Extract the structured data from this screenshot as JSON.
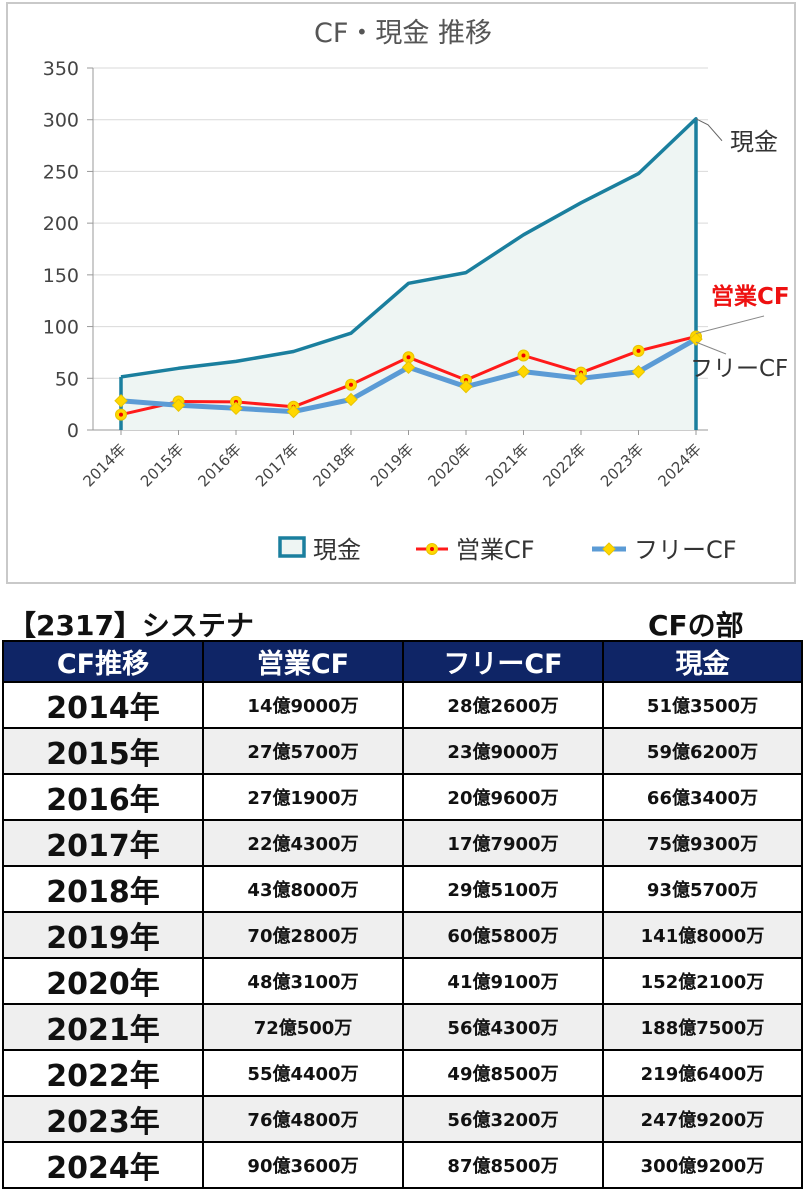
{
  "chart_data": {
    "type": "line",
    "title": "CF・現金 推移",
    "categories": [
      "2014年",
      "2015年",
      "2016年",
      "2017年",
      "2018年",
      "2019年",
      "2020年",
      "2021年",
      "2022年",
      "2023年",
      "2024年"
    ],
    "ylim": [
      0,
      350
    ],
    "yticks": [
      0,
      50,
      100,
      150,
      200,
      250,
      300,
      350
    ],
    "grid": true,
    "legend": "bottom",
    "series": [
      {
        "name": "現金",
        "style": "area",
        "color": "#1a7f9e",
        "fill": "#eef5f3",
        "values": [
          51.35,
          59.62,
          66.34,
          75.93,
          93.57,
          141.8,
          152.21,
          188.75,
          219.64,
          247.92,
          300.92
        ],
        "end_label": "現金",
        "end_label_color": "#333333"
      },
      {
        "name": "営業CF",
        "style": "line-marker",
        "color": "#ff1a1a",
        "marker": "#ffd700",
        "values": [
          14.9,
          27.57,
          27.19,
          22.43,
          43.8,
          70.28,
          48.31,
          72.05,
          55.44,
          76.48,
          90.36
        ],
        "end_label": "営業CF",
        "end_label_color": "#ee1111"
      },
      {
        "name": "フリーCF",
        "style": "line-marker",
        "color": "#5b9bd5",
        "marker": "#ffd700",
        "values": [
          28.26,
          23.9,
          20.96,
          17.79,
          29.51,
          60.58,
          41.91,
          56.43,
          49.85,
          56.32,
          87.85
        ],
        "end_label": "フリーCF",
        "end_label_color": "#333333"
      }
    ]
  },
  "company": "【2317】システナ",
  "section": "CFの部",
  "table": {
    "headers": [
      "CF推移",
      "営業CF",
      "フリーCF",
      "現金"
    ],
    "rows": [
      {
        "year": "2014年",
        "op": "14億9000万",
        "free": "28億2600万",
        "cash": "51億3500万"
      },
      {
        "year": "2015年",
        "op": "27億5700万",
        "free": "23億9000万",
        "cash": "59億6200万"
      },
      {
        "year": "2016年",
        "op": "27億1900万",
        "free": "20億9600万",
        "cash": "66億3400万"
      },
      {
        "year": "2017年",
        "op": "22億4300万",
        "free": "17億7900万",
        "cash": "75億9300万"
      },
      {
        "year": "2018年",
        "op": "43億8000万",
        "free": "29億5100万",
        "cash": "93億5700万"
      },
      {
        "year": "2019年",
        "op": "70億2800万",
        "free": "60億5800万",
        "cash": "141億8000万"
      },
      {
        "year": "2020年",
        "op": "48億3100万",
        "free": "41億9100万",
        "cash": "152億2100万"
      },
      {
        "year": "2021年",
        "op": "72億500万",
        "free": "56億4300万",
        "cash": "188億7500万"
      },
      {
        "year": "2022年",
        "op": "55億4400万",
        "free": "49億8500万",
        "cash": "219億6400万"
      },
      {
        "year": "2023年",
        "op": "76億4800万",
        "free": "56億3200万",
        "cash": "247億9200万"
      },
      {
        "year": "2024年",
        "op": "90億3600万",
        "free": "87億8500万",
        "cash": "300億9200万"
      }
    ]
  }
}
